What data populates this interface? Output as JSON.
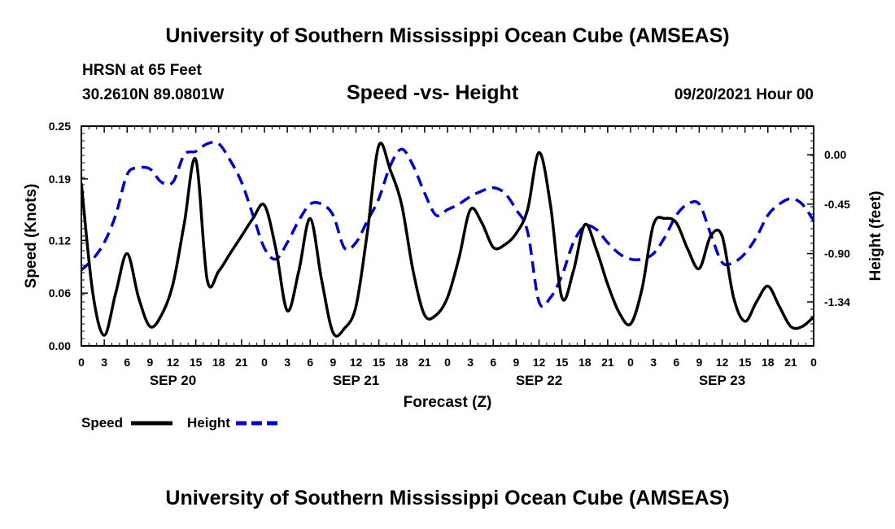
{
  "header": {
    "title": "University of Southern Mississippi Ocean Cube (AMSEAS)",
    "station": "HRSN at 65 Feet",
    "coords": "30.2610N  89.0801W",
    "subtitle": "Speed -vs- Height",
    "run_time": "09/20/2021 Hour 00"
  },
  "footer": {
    "title": "University of Southern Mississippi Ocean Cube (AMSEAS)"
  },
  "chart_data": {
    "type": "line",
    "xlabel": "Forecast (Z)",
    "x_range_hours": [
      0,
      96
    ],
    "x_tick_labels": [
      "0",
      "3",
      "6",
      "9",
      "12",
      "15",
      "18",
      "21",
      "0",
      "3",
      "6",
      "9",
      "12",
      "15",
      "18",
      "21",
      "0",
      "3",
      "6",
      "9",
      "12",
      "15",
      "18",
      "21",
      "0",
      "3",
      "6",
      "9",
      "12",
      "15",
      "18",
      "21",
      "0"
    ],
    "date_labels": [
      {
        "hour": 12,
        "label": "SEP 20"
      },
      {
        "hour": 36,
        "label": "SEP 21"
      },
      {
        "hour": 60,
        "label": "SEP 22"
      },
      {
        "hour": 84,
        "label": "SEP 23"
      }
    ],
    "left_axis": {
      "label": "Speed (Knots)",
      "range": [
        0.0,
        0.25
      ],
      "ticks": [
        0.0,
        0.06,
        0.12,
        0.19,
        0.25
      ],
      "tick_labels": [
        "0.00",
        "0.06",
        "0.12",
        "0.19",
        "0.25"
      ]
    },
    "right_axis": {
      "label": "Height (feet)",
      "range": [
        -1.74,
        0.26
      ],
      "ticks": [
        0.0,
        -0.45,
        -0.9,
        -1.34
      ],
      "tick_labels": [
        "0.00",
        "-0.45",
        "-0.90",
        "-1.34"
      ]
    },
    "series": [
      {
        "name": "Speed",
        "axis": "left",
        "color": "#000000",
        "dash": "solid",
        "x": [
          0,
          1.5,
          3,
          4.5,
          6,
          7.5,
          9,
          10.5,
          12,
          13.5,
          15,
          16.5,
          18,
          19.5,
          21,
          22.5,
          24,
          25.5,
          27,
          28.5,
          30,
          31.5,
          33,
          34.5,
          36,
          37.5,
          39,
          40.5,
          42,
          43.5,
          45,
          46.5,
          48,
          49.5,
          51,
          52.5,
          54,
          55.5,
          57,
          58.5,
          60,
          61.5,
          63,
          64.5,
          66,
          67.5,
          69,
          70.5,
          72,
          73.5,
          75,
          76.5,
          78,
          79.5,
          81,
          82.5,
          84,
          85.5,
          87,
          88.5,
          90,
          91.5,
          93,
          94.5,
          96
        ],
        "y": [
          0.185,
          0.06,
          0.012,
          0.06,
          0.105,
          0.055,
          0.022,
          0.035,
          0.07,
          0.14,
          0.212,
          0.075,
          0.085,
          0.105,
          0.125,
          0.145,
          0.16,
          0.11,
          0.04,
          0.085,
          0.145,
          0.075,
          0.015,
          0.02,
          0.045,
          0.13,
          0.228,
          0.2,
          0.16,
          0.085,
          0.035,
          0.035,
          0.055,
          0.1,
          0.155,
          0.14,
          0.112,
          0.115,
          0.128,
          0.155,
          0.22,
          0.16,
          0.055,
          0.085,
          0.138,
          0.11,
          0.07,
          0.038,
          0.025,
          0.065,
          0.138,
          0.145,
          0.14,
          0.11,
          0.088,
          0.125,
          0.125,
          0.055,
          0.028,
          0.05,
          0.068,
          0.045,
          0.022,
          0.022,
          0.033
        ]
      },
      {
        "name": "Height",
        "axis": "right",
        "color": "#0000cc",
        "dash": "dashed",
        "x": [
          0,
          1.5,
          3,
          4.5,
          6,
          7.5,
          9,
          10.5,
          12,
          13.5,
          15,
          16.5,
          18,
          19.5,
          21,
          22.5,
          24,
          25.5,
          27,
          28.5,
          30,
          31.5,
          33,
          34.5,
          36,
          37.5,
          39,
          40.5,
          42,
          43.5,
          45,
          46.5,
          48,
          49.5,
          51,
          52.5,
          54,
          55.5,
          57,
          58.5,
          60,
          61.5,
          63,
          64.5,
          66,
          67.5,
          69,
          70.5,
          72,
          73.5,
          75,
          76.5,
          78,
          79.5,
          81,
          82.5,
          84,
          85.5,
          87,
          88.5,
          90,
          91.5,
          93,
          94.5,
          96
        ],
        "y": [
          -1.05,
          -0.95,
          -0.8,
          -0.55,
          -0.18,
          -0.12,
          -0.13,
          -0.25,
          -0.25,
          0.0,
          0.03,
          0.1,
          0.1,
          -0.05,
          -0.25,
          -0.55,
          -0.85,
          -0.95,
          -0.8,
          -0.6,
          -0.45,
          -0.45,
          -0.55,
          -0.85,
          -0.8,
          -0.6,
          -0.4,
          -0.1,
          0.05,
          -0.1,
          -0.35,
          -0.55,
          -0.5,
          -0.45,
          -0.38,
          -0.33,
          -0.3,
          -0.35,
          -0.5,
          -0.7,
          -1.34,
          -1.3,
          -1.1,
          -0.8,
          -0.65,
          -0.68,
          -0.8,
          -0.9,
          -0.95,
          -0.95,
          -0.9,
          -0.75,
          -0.55,
          -0.45,
          -0.45,
          -0.72,
          -0.98,
          -0.98,
          -0.9,
          -0.75,
          -0.55,
          -0.45,
          -0.4,
          -0.45,
          -0.6
        ]
      }
    ],
    "legend": {
      "position": "bottom-left",
      "items": [
        {
          "label": "Speed",
          "color": "#000000",
          "dash": "solid"
        },
        {
          "label": "Height",
          "color": "#0000cc",
          "dash": "dashed"
        }
      ]
    }
  }
}
